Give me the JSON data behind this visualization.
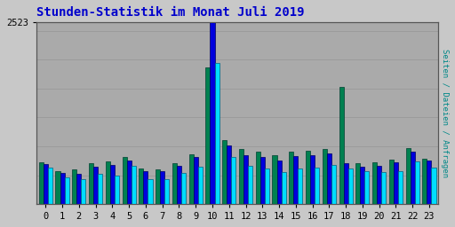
{
  "title": "Stunden-Statistik im Monat Juli 2019",
  "title_color": "#0000cc",
  "background_color": "#c8c8c8",
  "plot_bg_color": "#aaaaaa",
  "ylabel_right": "Seiten / Dateien / Anfragen",
  "hours": [
    0,
    1,
    2,
    3,
    4,
    5,
    6,
    7,
    8,
    9,
    10,
    11,
    12,
    13,
    14,
    15,
    16,
    17,
    18,
    19,
    20,
    21,
    22,
    23
  ],
  "ylim": [
    0,
    2523
  ],
  "colors": {
    "seiten": "#008050",
    "dateien": "#0000dd",
    "anfragen": "#00ddff"
  },
  "seiten": [
    580,
    460,
    480,
    560,
    590,
    650,
    490,
    480,
    560,
    690,
    1900,
    890,
    760,
    730,
    680,
    720,
    740,
    760,
    1620,
    560,
    575,
    610,
    780,
    630
  ],
  "dateien": [
    555,
    430,
    420,
    520,
    545,
    600,
    460,
    450,
    530,
    650,
    2520,
    810,
    680,
    650,
    600,
    660,
    680,
    700,
    560,
    520,
    530,
    575,
    720,
    600
  ],
  "anfragen": [
    500,
    370,
    340,
    420,
    390,
    530,
    350,
    350,
    430,
    520,
    1950,
    650,
    530,
    490,
    440,
    490,
    510,
    540,
    490,
    450,
    440,
    450,
    590,
    500
  ]
}
